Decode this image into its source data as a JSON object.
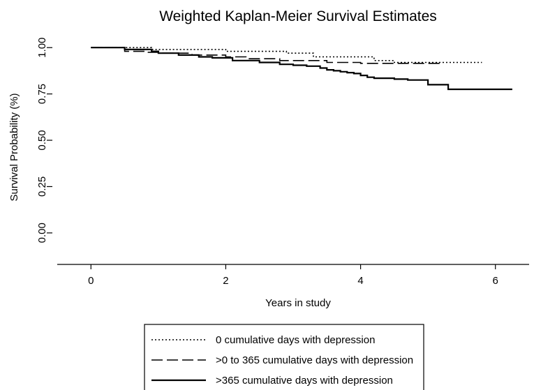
{
  "chart_data": {
    "type": "line",
    "title": "Weighted Kaplan-Meier Survival Estimates",
    "xlabel": "Years in study",
    "ylabel": "Survival Probability (%)",
    "xlim": [
      -0.5,
      6.5
    ],
    "ylim": [
      -0.17,
      1.08
    ],
    "x_ticks": [
      0,
      2,
      4,
      6
    ],
    "x_tick_labels": [
      "0",
      "2",
      "4",
      "6"
    ],
    "y_ticks": [
      0,
      0.25,
      0.5,
      0.75,
      1.0
    ],
    "y_tick_labels": [
      "0.00",
      "0.25",
      "0.50",
      "0.75",
      "1.00"
    ],
    "grid": false,
    "legend_position": "bottom",
    "series": [
      {
        "name": "0 cumulative days with depression",
        "style": "dotted",
        "color": "#000000",
        "step_points": [
          [
            0,
            1.0
          ],
          [
            0.9,
            0.99
          ],
          [
            2.0,
            0.98
          ],
          [
            2.9,
            0.97
          ],
          [
            3.3,
            0.95
          ],
          [
            4.2,
            0.93
          ],
          [
            4.5,
            0.92
          ],
          [
            5.8,
            0.92
          ]
        ]
      },
      {
        "name": ">0 to 365 cumulative days with depression",
        "style": "dashed",
        "color": "#000000",
        "step_points": [
          [
            0,
            1.0
          ],
          [
            0.5,
            0.98
          ],
          [
            0.8,
            0.975
          ],
          [
            1.0,
            0.97
          ],
          [
            1.5,
            0.96
          ],
          [
            2.0,
            0.95
          ],
          [
            2.3,
            0.94
          ],
          [
            2.8,
            0.93
          ],
          [
            3.5,
            0.92
          ],
          [
            4.0,
            0.915
          ],
          [
            5.2,
            0.915
          ]
        ]
      },
      {
        "name": ">365 cumulative days with depression",
        "style": "solid",
        "color": "#000000",
        "step_points": [
          [
            0,
            1.0
          ],
          [
            0.5,
            0.99
          ],
          [
            0.9,
            0.98
          ],
          [
            1.0,
            0.97
          ],
          [
            1.3,
            0.96
          ],
          [
            1.6,
            0.95
          ],
          [
            1.8,
            0.945
          ],
          [
            2.1,
            0.93
          ],
          [
            2.5,
            0.92
          ],
          [
            2.8,
            0.91
          ],
          [
            3.0,
            0.905
          ],
          [
            3.2,
            0.9
          ],
          [
            3.4,
            0.89
          ],
          [
            3.5,
            0.88
          ],
          [
            3.6,
            0.875
          ],
          [
            3.7,
            0.87
          ],
          [
            3.8,
            0.865
          ],
          [
            3.9,
            0.86
          ],
          [
            4.0,
            0.85
          ],
          [
            4.1,
            0.84
          ],
          [
            4.2,
            0.835
          ],
          [
            4.5,
            0.83
          ],
          [
            4.7,
            0.825
          ],
          [
            5.0,
            0.8
          ],
          [
            5.3,
            0.775
          ],
          [
            6.25,
            0.775
          ]
        ]
      }
    ]
  }
}
